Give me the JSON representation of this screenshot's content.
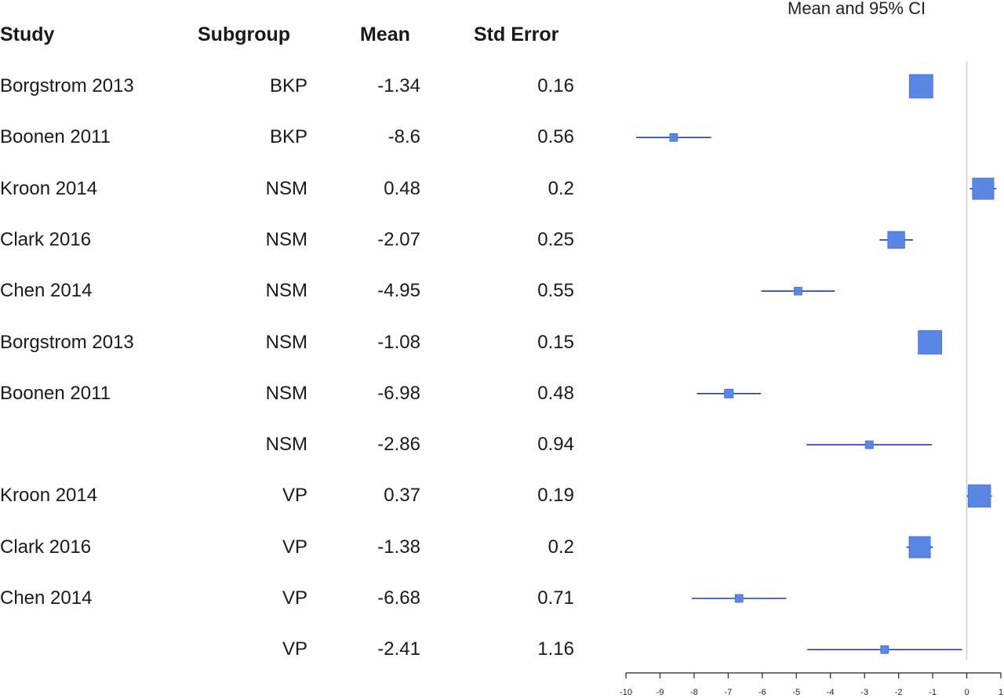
{
  "columns": {
    "study": "Study",
    "subgroup": "Subgroup",
    "mean": "Mean",
    "std_error": "Std Error",
    "ci": "Mean and 95% CI"
  },
  "rows": [
    {
      "study": "Borgstrom 2013",
      "subgroup": "BKP",
      "mean": "-1.34",
      "se": "0.16"
    },
    {
      "study": "Boonen 2011",
      "subgroup": "BKP",
      "mean": "-8.6",
      "se": "0.56"
    },
    {
      "study": "Kroon 2014",
      "subgroup": "NSM",
      "mean": "0.48",
      "se": "0.2"
    },
    {
      "study": "Clark 2016",
      "subgroup": "NSM",
      "mean": "-2.07",
      "se": "0.25"
    },
    {
      "study": "Chen 2014",
      "subgroup": "NSM",
      "mean": "-4.95",
      "se": "0.55"
    },
    {
      "study": "Borgstrom 2013",
      "subgroup": "NSM",
      "mean": "-1.08",
      "se": "0.15"
    },
    {
      "study": "Boonen 2011",
      "subgroup": "NSM",
      "mean": "-6.98",
      "se": "0.48"
    },
    {
      "study": "",
      "subgroup": "NSM",
      "mean": "-2.86",
      "se": "0.94"
    },
    {
      "study": "Kroon 2014",
      "subgroup": "VP",
      "mean": "0.37",
      "se": "0.19"
    },
    {
      "study": "Clark 2016",
      "subgroup": "VP",
      "mean": "-1.38",
      "se": "0.2"
    },
    {
      "study": "Chen 2014",
      "subgroup": "VP",
      "mean": "-6.68",
      "se": "0.71"
    },
    {
      "study": "",
      "subgroup": "VP",
      "mean": "-2.41",
      "se": "1.16"
    }
  ],
  "chart_data": {
    "type": "forest",
    "title": "Mean and 95% CI",
    "xlim": [
      -10,
      1
    ],
    "ticks": [
      -10,
      -9,
      -8,
      -7,
      -6,
      -5,
      -4,
      -3,
      -2,
      -1,
      0,
      1
    ],
    "tick_labels": [
      "-10",
      "-9",
      "-8",
      "-7",
      "-6",
      "-5",
      "-4",
      "-3",
      "-2",
      "-1",
      "0",
      "1"
    ],
    "reference_line": 0,
    "points": [
      {
        "mean": -1.34,
        "lower": -1.65,
        "upper": -1.03
      },
      {
        "mean": -8.6,
        "lower": -9.7,
        "upper": -7.5
      },
      {
        "mean": 0.48,
        "lower": 0.09,
        "upper": 0.87
      },
      {
        "mean": -2.07,
        "lower": -2.56,
        "upper": -1.58
      },
      {
        "mean": -4.95,
        "lower": -6.03,
        "upper": -3.87
      },
      {
        "mean": -1.08,
        "lower": -1.37,
        "upper": -0.79
      },
      {
        "mean": -6.98,
        "lower": -7.92,
        "upper": -6.04
      },
      {
        "mean": -2.86,
        "lower": -4.7,
        "upper": -1.02
      },
      {
        "mean": 0.37,
        "lower": 0.0,
        "upper": 0.74
      },
      {
        "mean": -1.38,
        "lower": -1.77,
        "upper": -0.99
      },
      {
        "mean": -6.68,
        "lower": -8.07,
        "upper": -5.29
      },
      {
        "mean": -2.41,
        "lower": -4.68,
        "upper": -0.14
      }
    ],
    "colors": {
      "marker": "#5b86e5",
      "ci_line": "#1f3ba8",
      "ref_line": "#cfcfcf",
      "axis": "#222222"
    }
  }
}
